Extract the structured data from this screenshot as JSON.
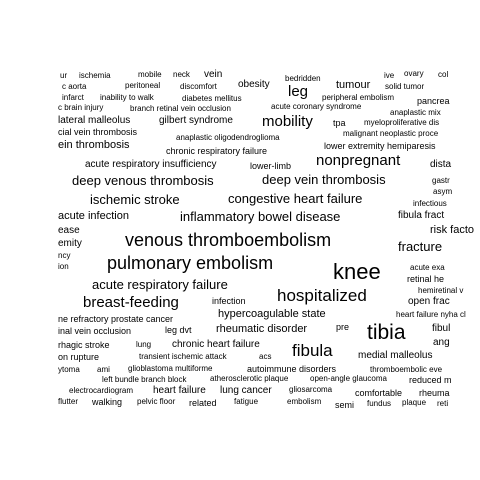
{
  "words": [
    "ur",
    "ischemia",
    "mobile",
    "neck",
    "vein",
    "bedridden",
    "ive",
    "ovary",
    "col",
    "c aorta",
    "peritoneal",
    "discomfort",
    "obesity",
    "leg",
    "tumour",
    "solid tumor",
    "infarct",
    "inability to walk",
    "diabetes mellitus",
    "peripheral embolism",
    "pancrea",
    "c brain injury",
    "branch retinal vein occlusion",
    "acute coronary syndrome",
    "anaplastic mix",
    "lateral malleolus",
    "gilbert syndrome",
    "mobility",
    "tpa",
    "myeloproliferative dis",
    "cial vein thrombosis",
    "anaplastic oligodendroglioma",
    "malignant neoplastic proce",
    "ein thrombosis",
    "chronic respiratory failure",
    "lower extremity hemiparesis",
    "acute respiratory insufficiency",
    "lower-limb",
    "nonpregnant",
    "dista",
    "deep venous thrombosis",
    "deep vein thrombosis",
    "gastr",
    "asym",
    "ischemic stroke",
    "congestive heart failure",
    "infectious",
    "acute infection",
    "inflammatory bowel disease",
    "fibula fract",
    "ease",
    "risk facto",
    "emity",
    "fracture",
    "venous thromboembolism",
    "ncy",
    "pulmonary embolism",
    "knee",
    "acute exa",
    "ion",
    "retinal he",
    "acute respiratory failure",
    "hemiretinal v",
    "hospitalized",
    "breast-feeding",
    "infection",
    "open frac",
    "hypercoagulable state",
    "heart failure nyha cl",
    "ne refractory prostate cancer",
    "pre",
    "inal vein occlusion",
    "leg dvt",
    "rheumatic disorder",
    "tibia",
    "fibul",
    "rhagic stroke",
    "lung",
    "chronic heart failure",
    "fibula",
    "ang",
    "on rupture",
    "transient ischemic attack",
    "acs",
    "medial malleolus",
    "ytoma",
    "ami",
    "glioblastoma multiforme",
    "autoimmune disorders",
    "thromboembolic eve",
    "left bundle branch block",
    "atherosclerotic plaque",
    "open-angle glaucoma",
    "reduced m",
    "electrocardiogram",
    "heart failure",
    "lung cancer",
    "gliosarcoma",
    "comfortable",
    "rheuma",
    "flutter",
    "walking",
    "pelvic floor",
    "related",
    "fatigue",
    "embolism",
    "semi",
    "fundus",
    "plaque",
    "reti"
  ]
}
